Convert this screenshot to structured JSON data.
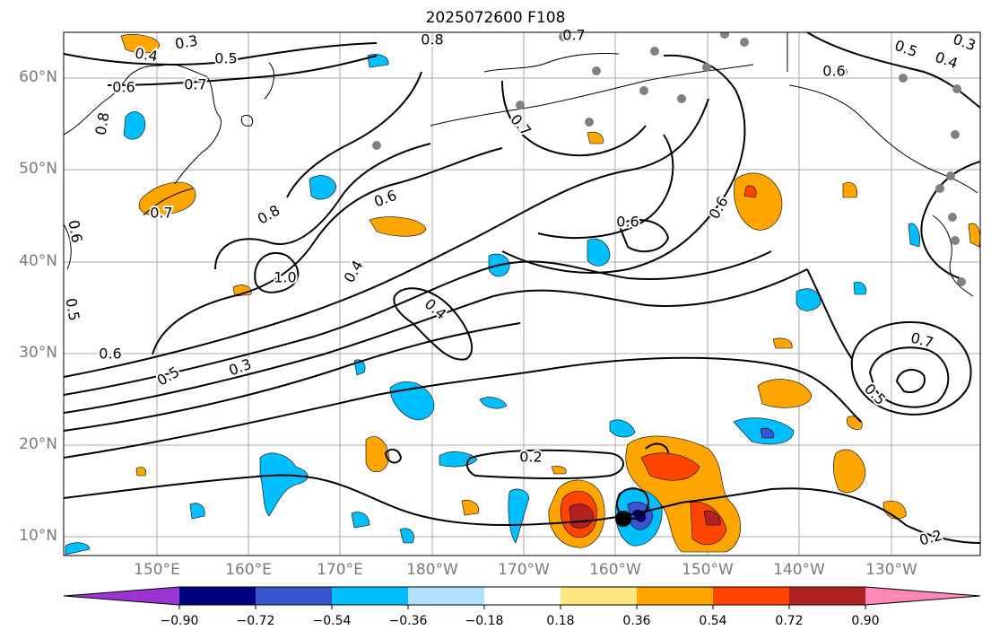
{
  "title": "2025072600 F108",
  "lat_labels": [
    "60°N",
    "50°N",
    "40°N",
    "30°N",
    "20°N",
    "10°N"
  ],
  "lon_labels": [
    "150°E",
    "160°E",
    "170°E",
    "180°W",
    "170°W",
    "160°W",
    "150°W",
    "140°W",
    "130°W"
  ],
  "colorbar": {
    "labels": [
      "−0.90",
      "−0.72",
      "−0.54",
      "−0.36",
      "−0.18",
      "0.18",
      "0.36",
      "0.54",
      "0.72",
      "0.90"
    ],
    "colors": [
      "#9a35d4",
      "#000080",
      "#3a55d0",
      "#00bfff",
      "#b0e0ff",
      "#ffffff",
      "#ffe680",
      "#ffa500",
      "#ff4500",
      "#b22222",
      "#ff88b8"
    ]
  },
  "contour_labels": [
    "0.3",
    "0.4",
    "0.5",
    "0.6",
    "0.7",
    "0.8",
    "0.7",
    "0.6",
    "0.5",
    "0.4",
    "0.3",
    "0.8",
    "0.7",
    "0.6",
    "0.5",
    "0.6",
    "0.8",
    "1.0",
    "0.4",
    "0.4",
    "0.6",
    "0.5",
    "0.3",
    "0.2",
    "0.2",
    "0.7",
    "0.6",
    "0.6",
    "0.7",
    "0.5"
  ]
}
